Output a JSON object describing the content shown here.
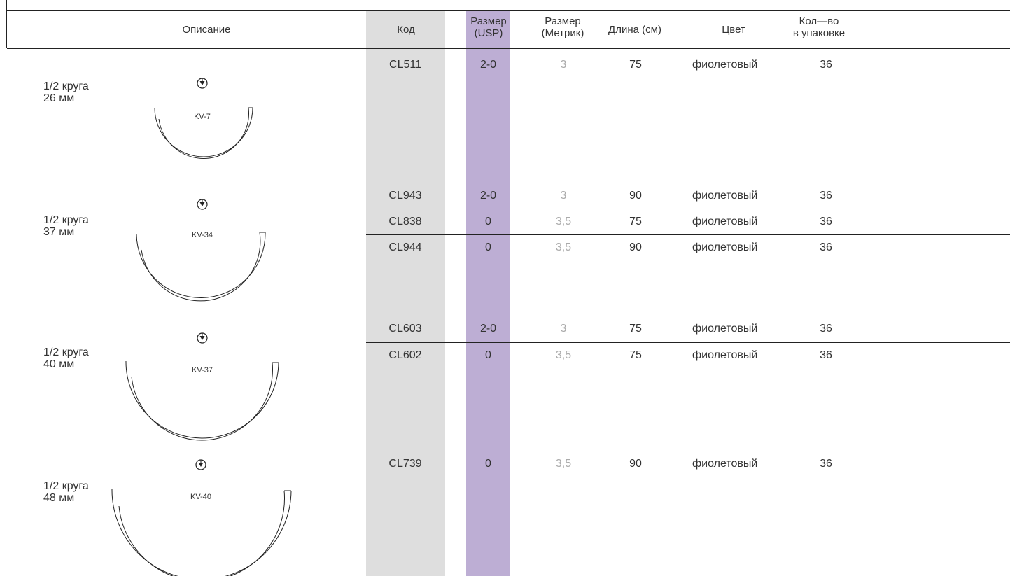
{
  "headers": {
    "description": "Описание",
    "code": "Код",
    "size_usp_1": "Размер",
    "size_usp_2": "(USP)",
    "size_metric_1": "Размер",
    "size_metric_2": "(Метрик)",
    "length": "Длина (см)",
    "color": "Цвет",
    "qty_1": "Кол—во",
    "qty_2": "в упаковке"
  },
  "colors": {
    "code_column_bg": "#dedede",
    "usp_column_bg": "#bdaed4",
    "metric_text": "#aaaaaa",
    "rule": "#222222"
  },
  "groups": [
    {
      "shape": "1/2 круга",
      "length_mm": "26 мм",
      "needle_code": "KV-7",
      "needle_icon": "taper-point-needle-symbol",
      "rows": [
        {
          "code": "CL511",
          "usp": "2-0",
          "metric": "3",
          "length": "75",
          "color": "фиолетовый",
          "qty": "36"
        }
      ]
    },
    {
      "shape": "1/2 круга",
      "length_mm": "37 мм",
      "needle_code": "KV-34",
      "needle_icon": "taper-point-needle-symbol",
      "rows": [
        {
          "code": "CL943",
          "usp": "2-0",
          "metric": "3",
          "length": "90",
          "color": "фиолетовый",
          "qty": "36"
        },
        {
          "code": "CL838",
          "usp": "0",
          "metric": "3,5",
          "length": "75",
          "color": "фиолетовый",
          "qty": "36"
        },
        {
          "code": "CL944",
          "usp": "0",
          "metric": "3,5",
          "length": "90",
          "color": "фиолетовый",
          "qty": "36"
        }
      ]
    },
    {
      "shape": "1/2 круга",
      "length_mm": "40 мм",
      "needle_code": "KV-37",
      "needle_icon": "taper-point-needle-symbol",
      "rows": [
        {
          "code": "CL603",
          "usp": "2-0",
          "metric": "3",
          "length": "75",
          "color": "фиолетовый",
          "qty": "36"
        },
        {
          "code": "CL602",
          "usp": "0",
          "metric": "3,5",
          "length": "75",
          "color": "фиолетовый",
          "qty": "36"
        }
      ]
    },
    {
      "shape": "1/2 круга",
      "length_mm": "48 мм",
      "needle_code": "KV-40",
      "needle_icon": "taper-point-needle-symbol",
      "rows": [
        {
          "code": "CL739",
          "usp": "0",
          "metric": "3,5",
          "length": "90",
          "color": "фиолетовый",
          "qty": "36"
        }
      ]
    }
  ]
}
